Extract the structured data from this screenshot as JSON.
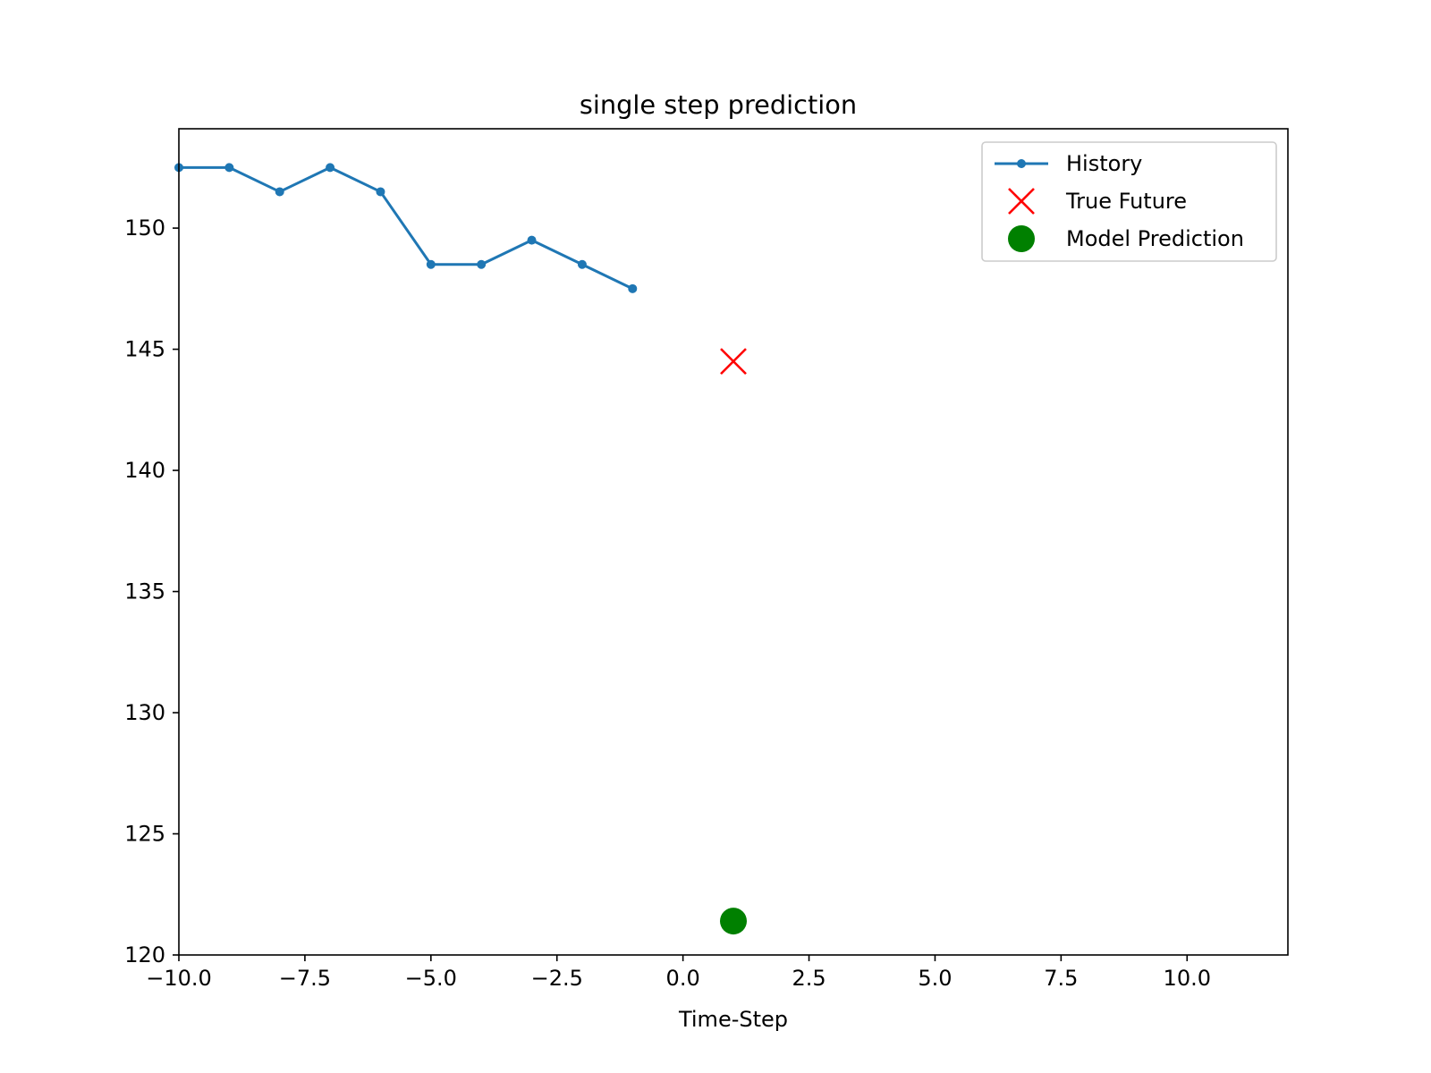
{
  "chart_data": {
    "type": "scatter",
    "title": "single step prediction",
    "xlabel": "Time-Step",
    "ylabel": "",
    "xlim": [
      -10.0,
      12.0
    ],
    "ylim": [
      120.0,
      154.1
    ],
    "xticks": [
      -10.0,
      -7.5,
      -5.0,
      -2.5,
      0.0,
      2.5,
      5.0,
      7.5,
      10.0
    ],
    "xtick_labels": [
      "−10.0",
      "−7.5",
      "−5.0",
      "−2.5",
      "0.0",
      "2.5",
      "5.0",
      "7.5",
      "10.0"
    ],
    "yticks": [
      120,
      125,
      130,
      135,
      140,
      145,
      150
    ],
    "ytick_labels": [
      "120",
      "125",
      "130",
      "135",
      "140",
      "145",
      "150"
    ],
    "grid": false,
    "legend_position": "top-right",
    "series": [
      {
        "name": "History",
        "kind": "line-with-markers",
        "color": "#1f77b4",
        "x": [
          -10,
          -9,
          -8,
          -7,
          -6,
          -5,
          -4,
          -3,
          -2,
          -1
        ],
        "y": [
          152.5,
          152.5,
          151.5,
          152.5,
          151.5,
          148.5,
          148.5,
          149.5,
          148.5,
          147.5
        ]
      },
      {
        "name": "True Future",
        "kind": "x-marker",
        "color": "#ff0000",
        "x": [
          1
        ],
        "y": [
          144.5
        ]
      },
      {
        "name": "Model Prediction",
        "kind": "circle-marker",
        "color": "#008000",
        "x": [
          1
        ],
        "y": [
          121.4
        ]
      }
    ]
  }
}
